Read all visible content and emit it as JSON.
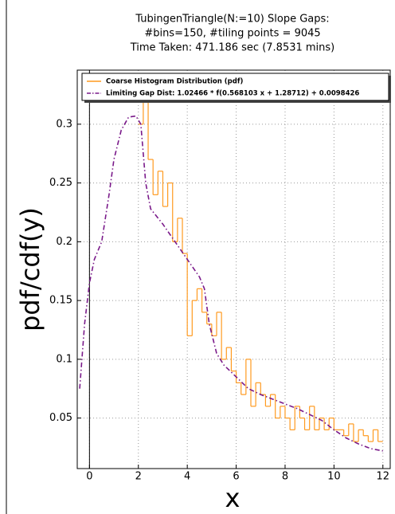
{
  "chart_data": {
    "type": "line",
    "title": [
      "TubingenTriangle(N:=10) Slope Gaps:",
      "#bins=150, #tiling points = 9045",
      "Time Taken: 471.186 sec (7.8531 mins)"
    ],
    "x_label": "x",
    "y_label": "pdf/cdf(y)",
    "xlim": [
      -0.5,
      12.3
    ],
    "ylim": [
      0.007,
      0.346
    ],
    "xticks": [
      0,
      2,
      4,
      6,
      8,
      10,
      12
    ],
    "yticks": [
      0.05,
      0.1,
      0.15,
      0.2,
      0.25,
      0.3
    ],
    "grid": true,
    "legend": "upper left",
    "series": [
      {
        "name": "Coarse Histogram Distribution (pdf)",
        "color": "#ff9a1f",
        "style": "step",
        "bins": [
          2.0,
          2.2,
          2.4,
          2.6,
          2.8,
          3.0,
          3.2,
          3.4,
          3.6,
          3.8,
          4.0,
          4.2,
          4.4,
          4.6,
          4.8,
          5.0,
          5.2,
          5.4,
          5.6,
          5.8,
          6.0,
          6.2,
          6.4,
          6.6,
          6.8,
          7.0,
          7.2,
          7.4,
          7.6,
          7.8,
          8.0,
          8.2,
          8.4,
          8.6,
          8.8,
          9.0,
          9.2,
          9.4,
          9.6,
          9.8,
          10.0,
          10.2,
          10.4,
          10.6,
          10.8,
          11.0,
          11.2,
          11.4,
          11.6,
          11.8,
          12.0
        ],
        "values": [
          0.3,
          0.33,
          0.27,
          0.24,
          0.26,
          0.23,
          0.25,
          0.2,
          0.22,
          0.19,
          0.12,
          0.15,
          0.16,
          0.14,
          0.13,
          0.12,
          0.14,
          0.1,
          0.11,
          0.09,
          0.08,
          0.07,
          0.1,
          0.06,
          0.08,
          0.07,
          0.06,
          0.07,
          0.05,
          0.06,
          0.05,
          0.04,
          0.06,
          0.05,
          0.04,
          0.06,
          0.04,
          0.05,
          0.04,
          0.05,
          0.04,
          0.04,
          0.035,
          0.045,
          0.03,
          0.04,
          0.035,
          0.03,
          0.04,
          0.03
        ]
      },
      {
        "name": "Limiting Gap Dist: 1.02466 * f(0.568103 x + 1.28712) + 0.0098426",
        "color": "#7a1a8a",
        "style": "dashdot",
        "x": [
          -0.4,
          -0.2,
          0,
          0.2,
          0.5,
          0.8,
          1.0,
          1.3,
          1.6,
          1.9,
          2.1,
          2.3,
          2.5,
          3,
          3.5,
          4,
          4.5,
          4.7,
          4.9,
          5.2,
          5.5,
          6,
          6.5,
          7,
          7.5,
          8,
          8.5,
          9,
          9.5,
          10,
          10.5,
          11,
          11.5,
          12
        ],
        "values": [
          0.075,
          0.13,
          0.165,
          0.185,
          0.2,
          0.24,
          0.27,
          0.295,
          0.306,
          0.307,
          0.3,
          0.25,
          0.228,
          0.215,
          0.2,
          0.185,
          0.17,
          0.16,
          0.13,
          0.105,
          0.095,
          0.085,
          0.075,
          0.07,
          0.066,
          0.062,
          0.058,
          0.053,
          0.048,
          0.04,
          0.033,
          0.028,
          0.024,
          0.022
        ]
      }
    ]
  }
}
